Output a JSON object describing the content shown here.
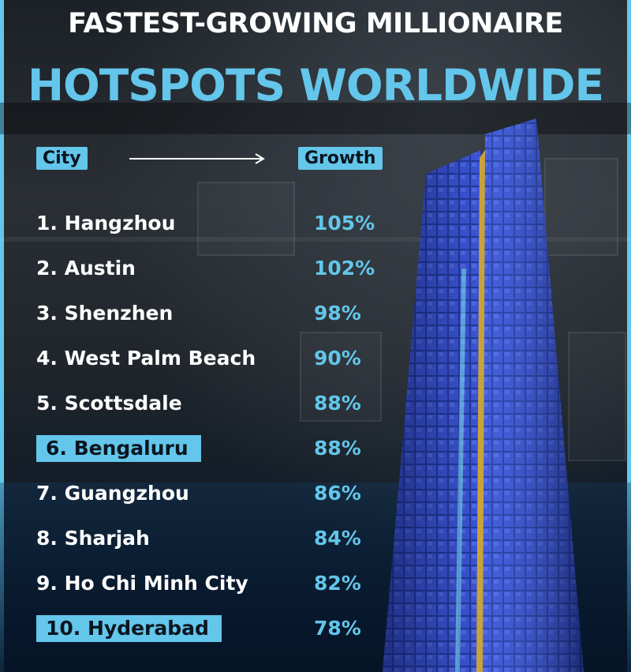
{
  "title": {
    "line1": "FASTEST-GROWING MILLIONAIRE",
    "line2": "HOTSPOTS WORLDWIDE"
  },
  "headers": {
    "city": "City",
    "growth": "Growth"
  },
  "colors": {
    "accent": "#63c6ea",
    "text": "#ffffff",
    "dark": "#0b1520"
  },
  "chart_data": {
    "type": "table",
    "columns": [
      "City",
      "Growth"
    ],
    "rows": [
      {
        "rank": 1,
        "label": "1. Hangzhou",
        "city": "Hangzhou",
        "value": "105%",
        "growth_pct": 105,
        "highlight": false
      },
      {
        "rank": 2,
        "label": "2. Austin",
        "city": "Austin",
        "value": "102%",
        "growth_pct": 102,
        "highlight": false
      },
      {
        "rank": 3,
        "label": "3. Shenzhen",
        "city": "Shenzhen",
        "value": "98%",
        "growth_pct": 98,
        "highlight": false
      },
      {
        "rank": 4,
        "label": "4. West Palm Beach",
        "city": "West Palm Beach",
        "value": "90%",
        "growth_pct": 90,
        "highlight": false
      },
      {
        "rank": 5,
        "label": "5. Scottsdale",
        "city": "Scottsdale",
        "value": "88%",
        "growth_pct": 88,
        "highlight": false
      },
      {
        "rank": 6,
        "label": "6. Bengaluru",
        "city": "Bengaluru",
        "value": "88%",
        "growth_pct": 88,
        "highlight": true
      },
      {
        "rank": 7,
        "label": "7. Guangzhou",
        "city": "Guangzhou",
        "value": "86%",
        "growth_pct": 86,
        "highlight": false
      },
      {
        "rank": 8,
        "label": "8. Sharjah",
        "city": "Sharjah",
        "value": "84%",
        "growth_pct": 84,
        "highlight": false
      },
      {
        "rank": 9,
        "label": "9. Ho Chi Minh City",
        "city": "Ho Chi Minh City",
        "value": "82%",
        "growth_pct": 82,
        "highlight": false
      },
      {
        "rank": 10,
        "label": "10. Hyderabad",
        "city": "Hyderabad",
        "value": "78%",
        "growth_pct": 78,
        "highlight": true
      }
    ]
  }
}
